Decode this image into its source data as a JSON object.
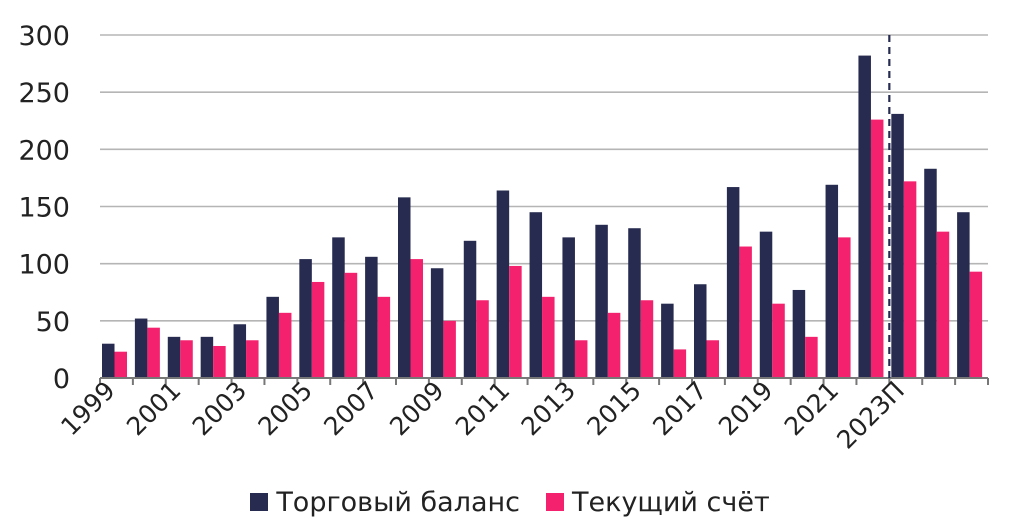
{
  "chart_data": {
    "type": "bar",
    "categories": [
      "1999",
      "2000",
      "2001",
      "2002",
      "2003",
      "2004",
      "2005",
      "2006",
      "2007",
      "2008",
      "2009",
      "2010",
      "2011",
      "2012",
      "2013",
      "2014",
      "2015",
      "2016",
      "2017",
      "2018",
      "2019",
      "2020",
      "2021",
      "2022",
      "2023П",
      "2024П",
      "2025П"
    ],
    "x_tick_labels": [
      "1999",
      "",
      "2001",
      "",
      "2003",
      "",
      "2005",
      "",
      "2007",
      "",
      "2009",
      "",
      "2011",
      "",
      "2013",
      "",
      "2015",
      "",
      "2017",
      "",
      "2019",
      "",
      "2021",
      "",
      "2023П",
      "",
      ""
    ],
    "y_ticks": [
      "0",
      "50",
      "100",
      "150",
      "200",
      "250",
      "300"
    ],
    "ylim": [
      0,
      300
    ],
    "grid": true,
    "forecast_divider_after": "2022",
    "legend_position": "bottom",
    "series": [
      {
        "name": "Торговый баланс",
        "color": "#262b4f",
        "values": [
          30,
          52,
          36,
          36,
          47,
          71,
          104,
          123,
          106,
          158,
          96,
          120,
          164,
          145,
          123,
          134,
          131,
          65,
          82,
          167,
          128,
          77,
          169,
          282,
          231,
          183,
          145
        ]
      },
      {
        "name": "Текущий счёт",
        "color": "#f4226e",
        "values": [
          23,
          44,
          33,
          28,
          33,
          57,
          84,
          92,
          71,
          104,
          50,
          68,
          98,
          71,
          33,
          57,
          68,
          25,
          33,
          115,
          65,
          36,
          123,
          226,
          172,
          128,
          93
        ]
      }
    ]
  }
}
